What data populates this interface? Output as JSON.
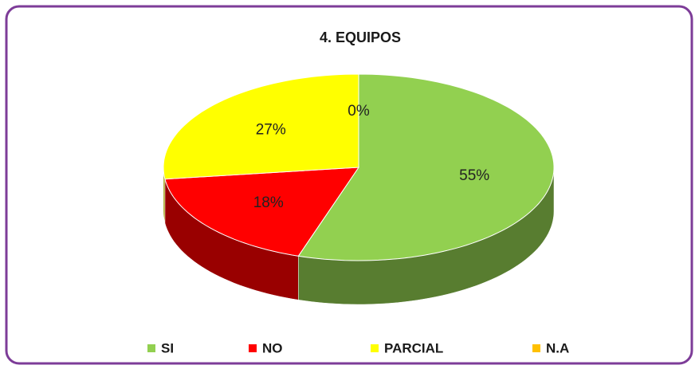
{
  "chart_data": {
    "type": "pie",
    "title": "4. EQUIPOS",
    "categories": [
      "SI",
      "NO",
      "PARCIAL",
      "N.A"
    ],
    "values": [
      55,
      18,
      27,
      0
    ],
    "value_labels": [
      "55%",
      "18%",
      "27%",
      "0%"
    ],
    "colors": [
      "#92d050",
      "#ff0000",
      "#ffff00",
      "#ffc000"
    ],
    "legend": "bottom"
  }
}
